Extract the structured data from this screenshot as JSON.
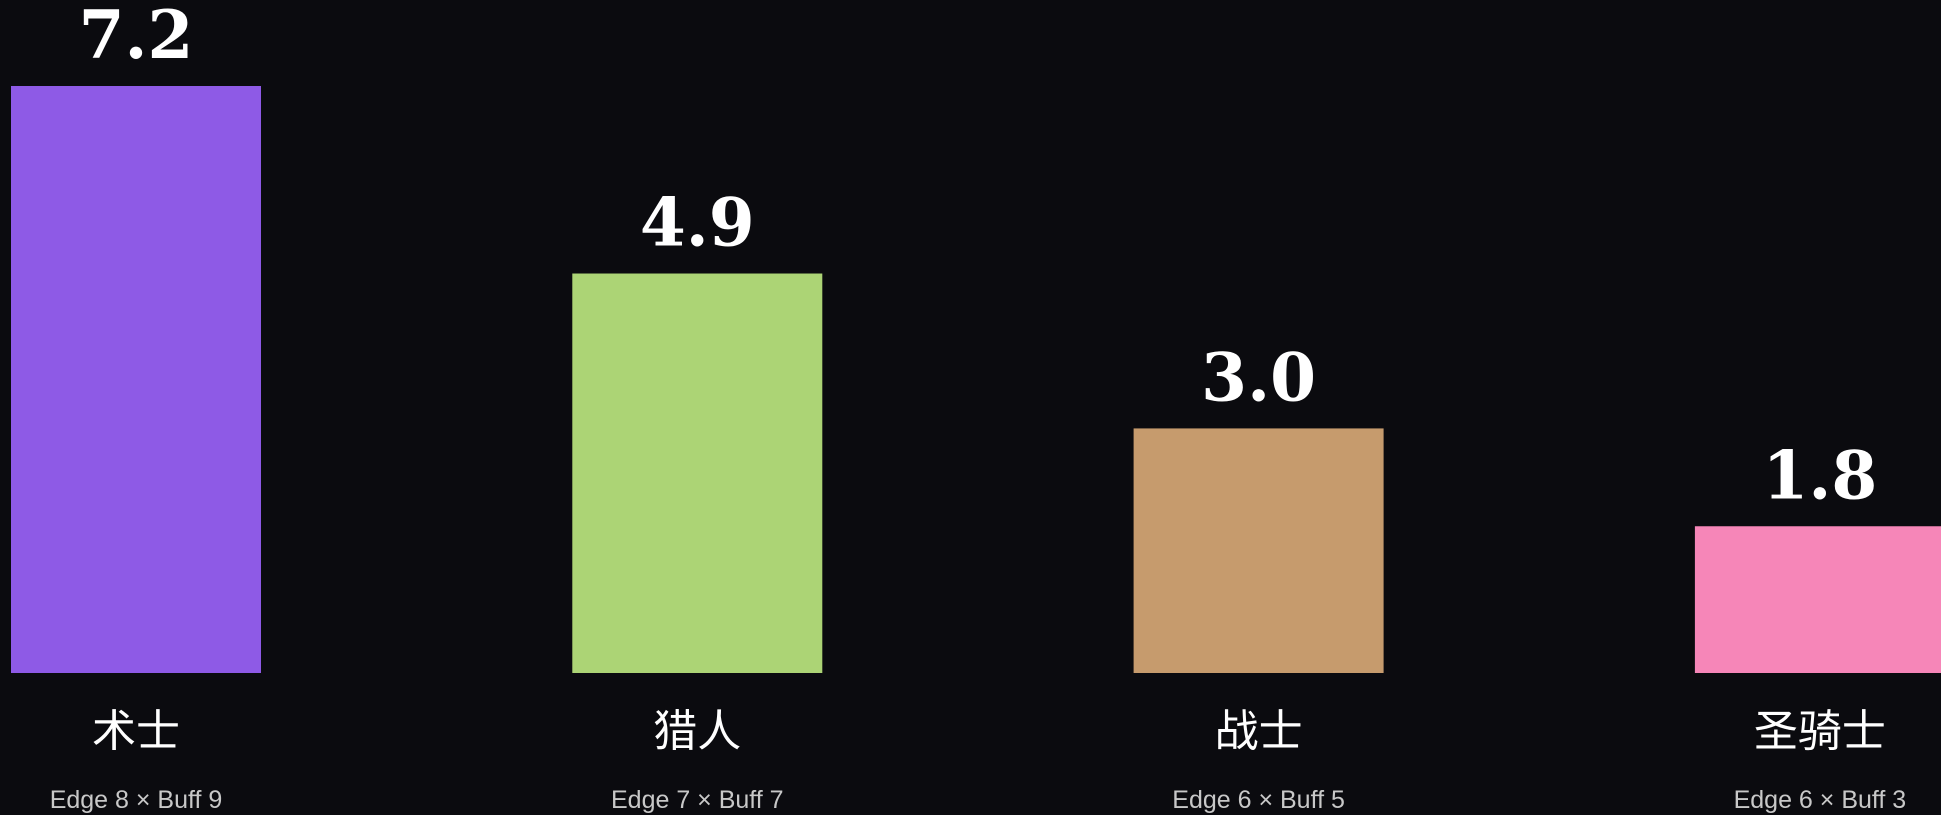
{
  "chart_data": {
    "type": "bar",
    "categories": [
      "术士",
      "猎人",
      "战士",
      "圣骑士"
    ],
    "values": [
      7.2,
      4.9,
      3.0,
      1.8
    ],
    "value_labels": [
      "7.2",
      "4.9",
      "3.0",
      "1.8"
    ],
    "sublabels": [
      "Edge 8 × Buff 9",
      "Edge 7 × Buff 7",
      "Edge 6 × Buff 5",
      "Edge 6 × Buff 3"
    ],
    "colors": [
      "#8e5ae6",
      "#acd475",
      "#c69b6d",
      "#f686b8"
    ],
    "title": "",
    "xlabel": "",
    "ylabel": "",
    "ylim": [
      0,
      7.2
    ],
    "grid": false,
    "background": "#0b0b0f",
    "text_color": "#ffffff",
    "sublabel_color": "#c8c8c8"
  }
}
